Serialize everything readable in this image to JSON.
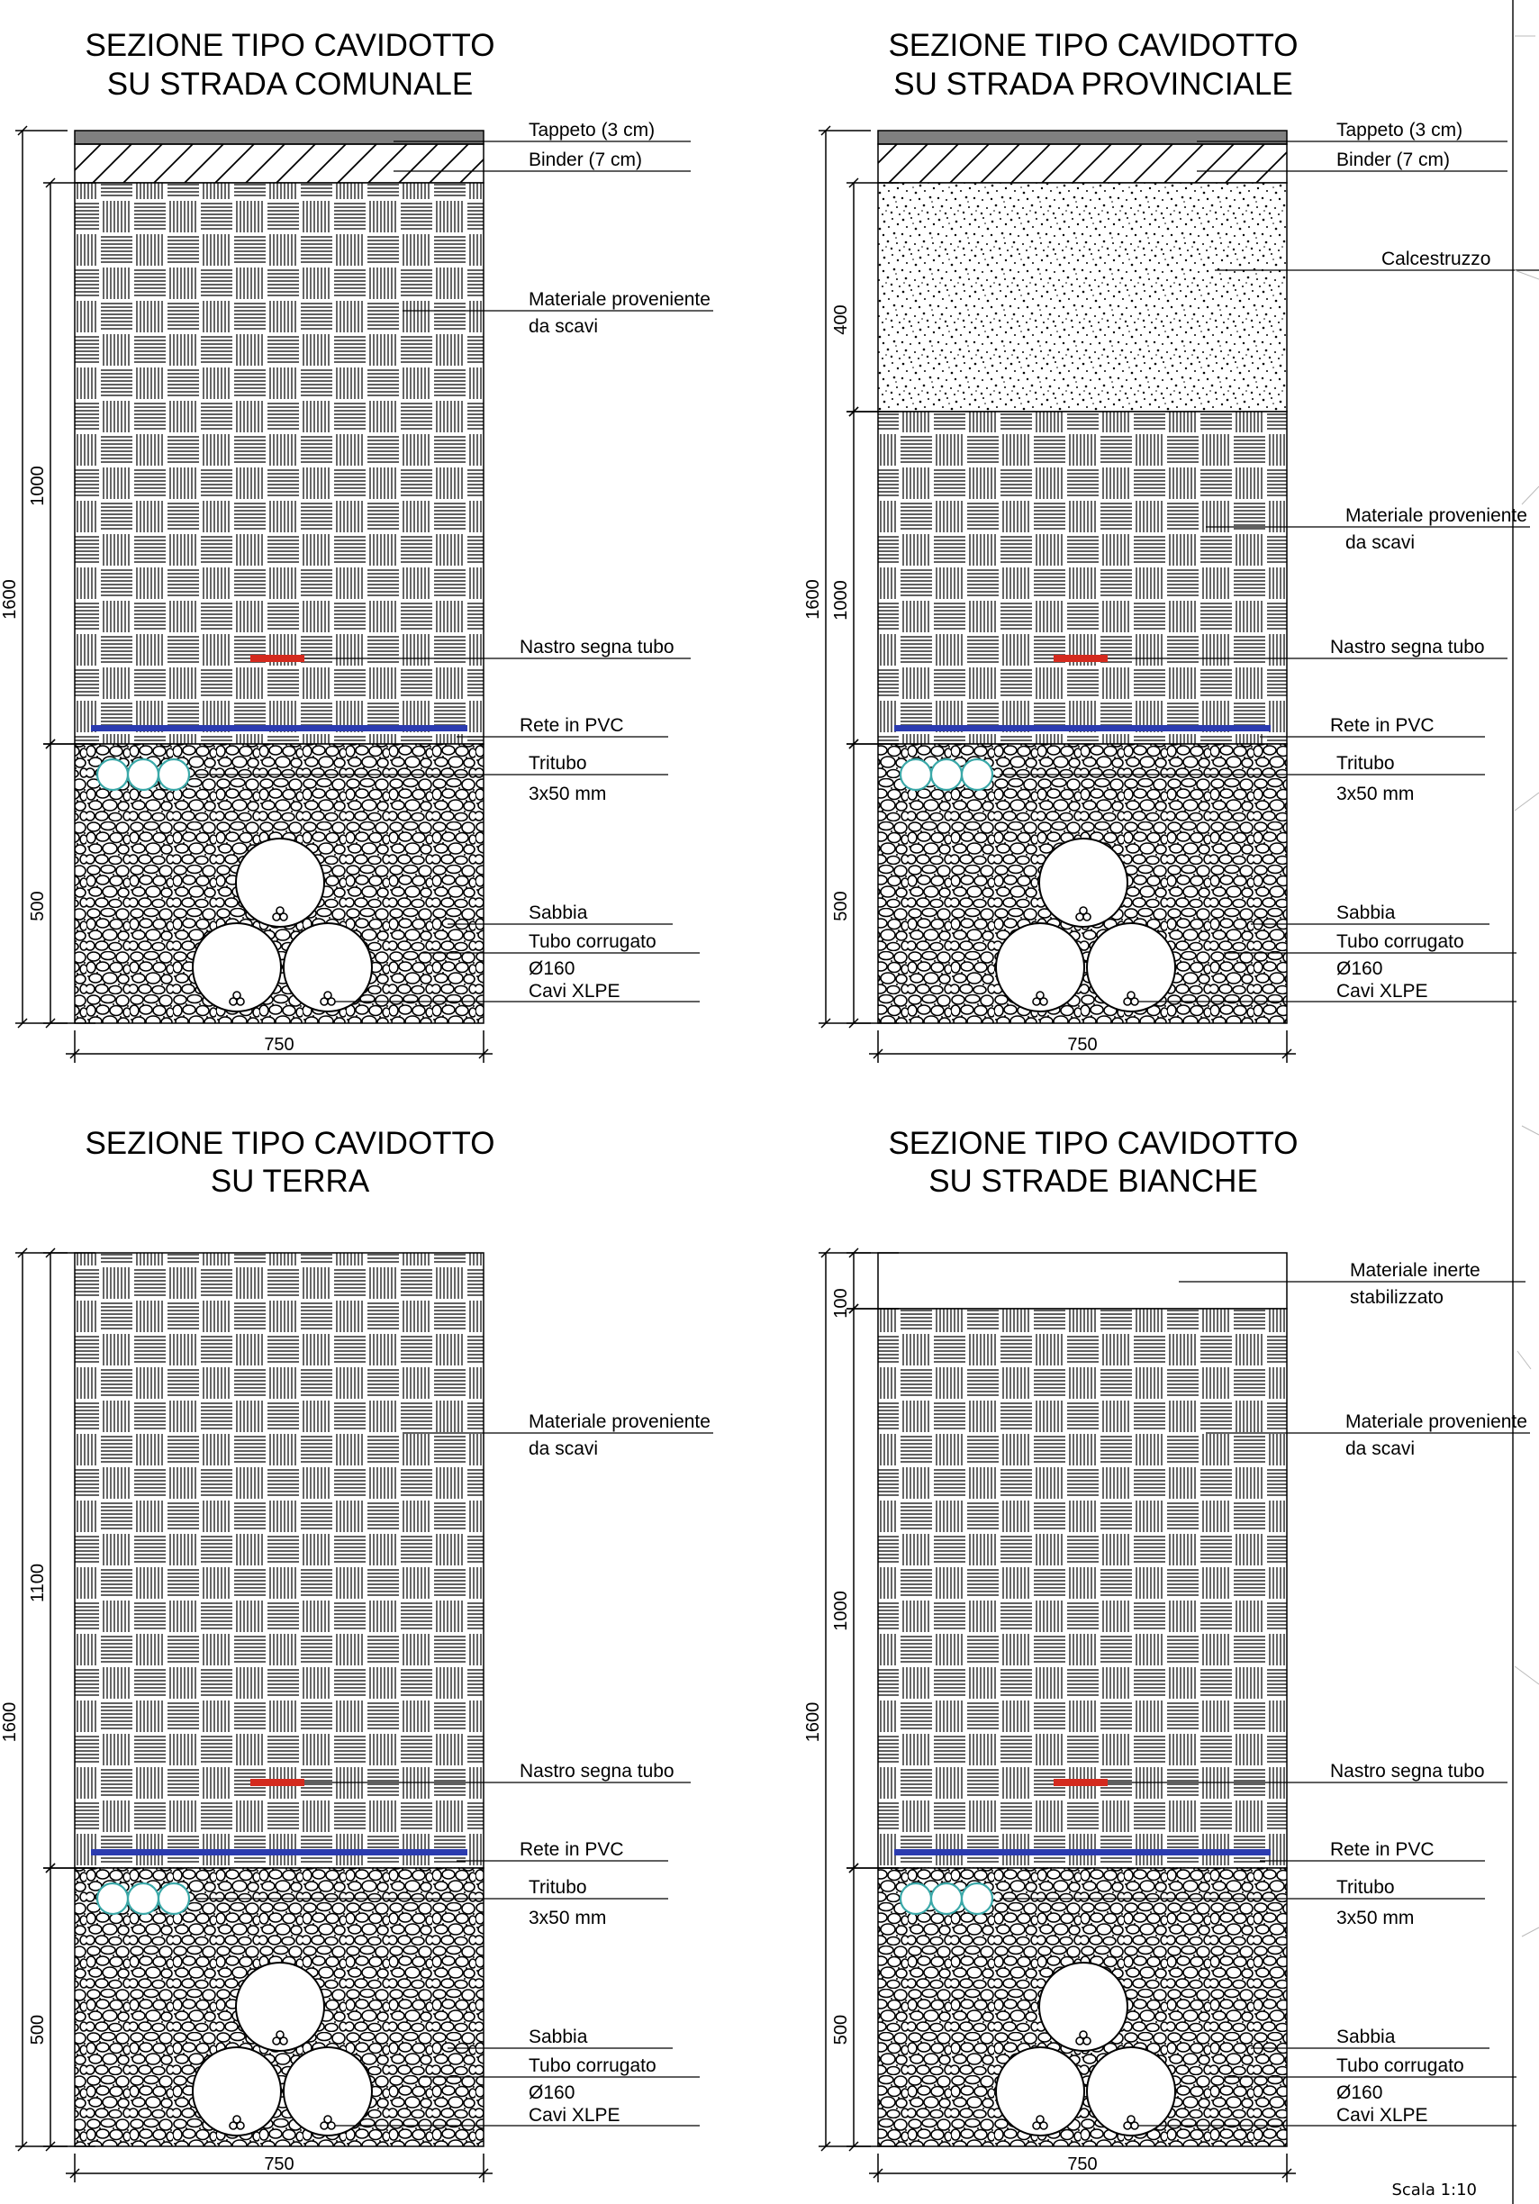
{
  "colors": {
    "stroke": "#000000",
    "asphalt": "#808080",
    "tape": "#d42a1e",
    "pvc_net": "#2b3bb0",
    "tritubo": "#3aa8a8"
  },
  "sections": [
    {
      "title": [
        "SEZIONE TIPO CAVIDOTTO",
        "SU STRADA COMUNALE"
      ],
      "top_type": "asphalt",
      "labels": {
        "tappeto": "Tappeto (3 cm)",
        "binder": "Binder (7 cm)",
        "calcestruzzo": "",
        "inerte": [],
        "materiale": [
          "Materiale proveniente",
          "da scavi"
        ],
        "nastro": "Nastro segna tubo",
        "rete": "Rete in PVC",
        "tritubo": [
          "Tritubo",
          "3x50 mm"
        ],
        "sabbia": "Sabbia",
        "tubo": "Tubo corrugato",
        "diam": "Ø160",
        "cavi": "Cavi XLPE"
      },
      "dims": {
        "total": "1600",
        "upper": "1000",
        "top": "",
        "lower": "500",
        "width": "750"
      }
    },
    {
      "title": [
        "SEZIONE TIPO CAVIDOTTO",
        "SU STRADA PROVINCIALE"
      ],
      "top_type": "concrete",
      "labels": {
        "tappeto": "Tappeto (3 cm)",
        "binder": "Binder (7 cm)",
        "calcestruzzo": "Calcestruzzo",
        "inerte": [],
        "materiale": [
          "Materiale proveniente",
          "da scavi"
        ],
        "nastro": "Nastro segna tubo",
        "rete": "Rete in PVC",
        "tritubo": [
          "Tritubo",
          "3x50 mm"
        ],
        "sabbia": "Sabbia",
        "tubo": "Tubo corrugato",
        "diam": "Ø160",
        "cavi": "Cavi XLPE"
      },
      "dims": {
        "total": "1600",
        "upper": "1000",
        "top": "400",
        "lower": "500",
        "width": "750"
      }
    },
    {
      "title": [
        "SEZIONE TIPO CAVIDOTTO",
        "SU TERRA"
      ],
      "top_type": "earth",
      "labels": {
        "tappeto": "",
        "binder": "",
        "calcestruzzo": "",
        "inerte": [],
        "materiale": [
          "Materiale proveniente",
          "da scavi"
        ],
        "nastro": "Nastro segna tubo",
        "rete": "Rete in PVC",
        "tritubo": [
          "Tritubo",
          "3x50 mm"
        ],
        "sabbia": "Sabbia",
        "tubo": "Tubo corrugato",
        "diam": "Ø160",
        "cavi": "Cavi XLPE"
      },
      "dims": {
        "total": "1600",
        "upper": "1100",
        "top": "",
        "lower": "500",
        "width": "750"
      }
    },
    {
      "title": [
        "SEZIONE TIPO CAVIDOTTO",
        "SU STRADE BIANCHE"
      ],
      "top_type": "gravel",
      "labels": {
        "tappeto": "",
        "binder": "",
        "calcestruzzo": "",
        "inerte": [
          "Materiale inerte",
          "stabilizzato"
        ],
        "materiale": [
          "Materiale proveniente",
          "da scavi"
        ],
        "nastro": "Nastro segna tubo",
        "rete": "Rete in PVC",
        "tritubo": [
          "Tritubo",
          "3x50 mm"
        ],
        "sabbia": "Sabbia",
        "tubo": "Tubo corrugato",
        "diam": "Ø160",
        "cavi": "Cavi XLPE"
      },
      "dims": {
        "total": "1600",
        "upper": "1000",
        "top": "100",
        "lower": "500",
        "width": "750"
      }
    }
  ],
  "footer": {
    "scale": "Scala 1:10"
  }
}
